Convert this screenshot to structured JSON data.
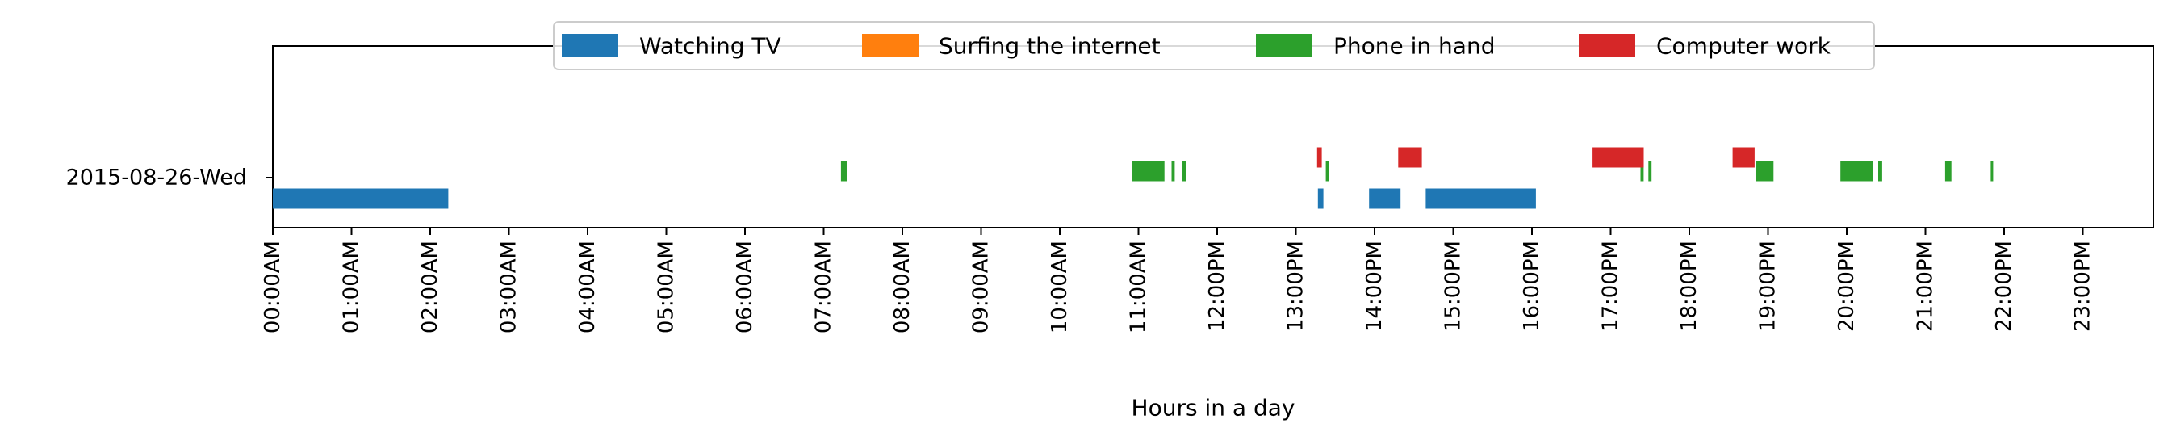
{
  "chart_data": {
    "type": "bar",
    "orientation": "horizontal",
    "title": "",
    "xlabel": "Hours in a day",
    "ylabel": "",
    "xlim": [
      0,
      24
    ],
    "grid": false,
    "legend_position": "top-center",
    "x_ticks": [
      0,
      1,
      2,
      3,
      4,
      5,
      6,
      7,
      8,
      9,
      10,
      11,
      12,
      13,
      14,
      15,
      16,
      17,
      18,
      19,
      20,
      21,
      22,
      23
    ],
    "x_tick_labels": [
      "00:00AM",
      "01:00AM",
      "02:00AM",
      "03:00AM",
      "04:00AM",
      "05:00AM",
      "06:00AM",
      "07:00AM",
      "08:00AM",
      "09:00AM",
      "10:00AM",
      "11:00AM",
      "12:00PM",
      "13:00PM",
      "14:00PM",
      "15:00PM",
      "16:00PM",
      "17:00PM",
      "18:00PM",
      "19:00PM",
      "20:00PM",
      "21:00PM",
      "22:00PM",
      "23:00PM"
    ],
    "categories": [
      "2015-08-26-Wed"
    ],
    "series": [
      {
        "name": "Watching TV",
        "color": "#1f77b4",
        "lane": 0,
        "intervals": [
          [
            0.0,
            2.23
          ],
          [
            13.28,
            13.35
          ],
          [
            13.93,
            14.33
          ],
          [
            14.65,
            16.05
          ]
        ]
      },
      {
        "name": "Surfing the internet",
        "color": "#ff7f0e",
        "lane": 1,
        "intervals": []
      },
      {
        "name": "Phone in hand",
        "color": "#2ca02c",
        "lane": 2,
        "intervals": [
          [
            7.22,
            7.3
          ],
          [
            10.92,
            11.33
          ],
          [
            11.42,
            11.46
          ],
          [
            11.55,
            11.6
          ],
          [
            13.38,
            13.42
          ],
          [
            17.38,
            17.42
          ],
          [
            17.48,
            17.52
          ],
          [
            18.85,
            19.07
          ],
          [
            19.92,
            20.33
          ],
          [
            20.4,
            20.45
          ],
          [
            21.25,
            21.33
          ],
          [
            21.83,
            21.86
          ]
        ]
      },
      {
        "name": "Computer work",
        "color": "#d62728",
        "lane": 3,
        "intervals": [
          [
            13.27,
            13.33
          ],
          [
            14.3,
            14.6
          ],
          [
            16.77,
            17.42
          ],
          [
            18.55,
            18.83
          ]
        ]
      }
    ]
  }
}
